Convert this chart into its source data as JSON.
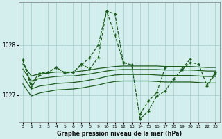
{
  "title": "Graphe pression niveau de la mer (hPa)",
  "bg_color": "#d4eeed",
  "grid_color": "#a8d4d0",
  "line_color": "#1a5c1a",
  "x_ticks": [
    0,
    1,
    2,
    3,
    4,
    5,
    6,
    7,
    8,
    9,
    10,
    11,
    12,
    13,
    14,
    15,
    16,
    17,
    18,
    19,
    20,
    21,
    22,
    23
  ],
  "ylim": [
    1026.45,
    1028.85
  ],
  "yticks": [
    1027,
    1028
  ],
  "series_main": {
    "x": [
      0,
      1,
      2,
      3,
      4,
      5,
      6,
      7,
      8,
      9,
      10,
      11,
      12,
      13,
      14,
      15,
      16,
      17,
      18,
      19,
      20,
      21,
      22,
      23
    ],
    "y": [
      1027.7,
      1027.15,
      1027.4,
      1027.45,
      1027.55,
      1027.45,
      1027.45,
      1027.6,
      1027.75,
      1028.0,
      1028.68,
      1028.62,
      1027.65,
      1027.6,
      1026.52,
      1026.68,
      1026.98,
      1027.08,
      1027.32,
      1027.5,
      1027.65,
      1027.62,
      1027.18,
      1027.42
    ]
  },
  "trend_lines": [
    [
      1027.62,
      1027.38,
      1027.42,
      1027.44,
      1027.46,
      1027.46,
      1027.46,
      1027.48,
      1027.5,
      1027.53,
      1027.55,
      1027.57,
      1027.58,
      1027.58,
      1027.58,
      1027.58,
      1027.58,
      1027.57,
      1027.57,
      1027.57,
      1027.57,
      1027.56,
      1027.55,
      1027.55
    ],
    [
      1027.52,
      1027.28,
      1027.33,
      1027.35,
      1027.37,
      1027.38,
      1027.38,
      1027.4,
      1027.42,
      1027.45,
      1027.48,
      1027.5,
      1027.51,
      1027.51,
      1027.51,
      1027.51,
      1027.51,
      1027.5,
      1027.5,
      1027.5,
      1027.5,
      1027.49,
      1027.48,
      1027.48
    ],
    [
      1027.38,
      1027.12,
      1027.18,
      1027.2,
      1027.23,
      1027.24,
      1027.25,
      1027.27,
      1027.3,
      1027.33,
      1027.37,
      1027.4,
      1027.41,
      1027.41,
      1027.41,
      1027.41,
      1027.4,
      1027.39,
      1027.39,
      1027.39,
      1027.39,
      1027.38,
      1027.37,
      1027.37
    ],
    [
      1027.22,
      1026.98,
      1027.04,
      1027.07,
      1027.1,
      1027.11,
      1027.12,
      1027.14,
      1027.17,
      1027.2,
      1027.24,
      1027.27,
      1027.28,
      1027.28,
      1027.28,
      1027.28,
      1027.27,
      1027.26,
      1027.26,
      1027.26,
      1027.26,
      1027.25,
      1027.24,
      1027.24
    ]
  ],
  "obs_line": {
    "x": [
      0,
      1,
      2,
      3,
      4,
      5,
      6,
      7,
      8,
      9,
      10,
      11,
      12,
      13,
      14,
      15,
      16,
      17,
      18,
      19,
      20,
      21,
      22,
      23
    ],
    "y": [
      1027.7,
      1027.22,
      1027.44,
      1027.46,
      1027.55,
      1027.44,
      1027.45,
      1027.62,
      1027.52,
      1027.75,
      1028.68,
      1028.2,
      1027.65,
      null,
      1026.62,
      1026.88,
      1027.05,
      1027.55,
      null,
      1027.52,
      1027.72,
      null,
      1027.2,
      1027.45
    ]
  }
}
